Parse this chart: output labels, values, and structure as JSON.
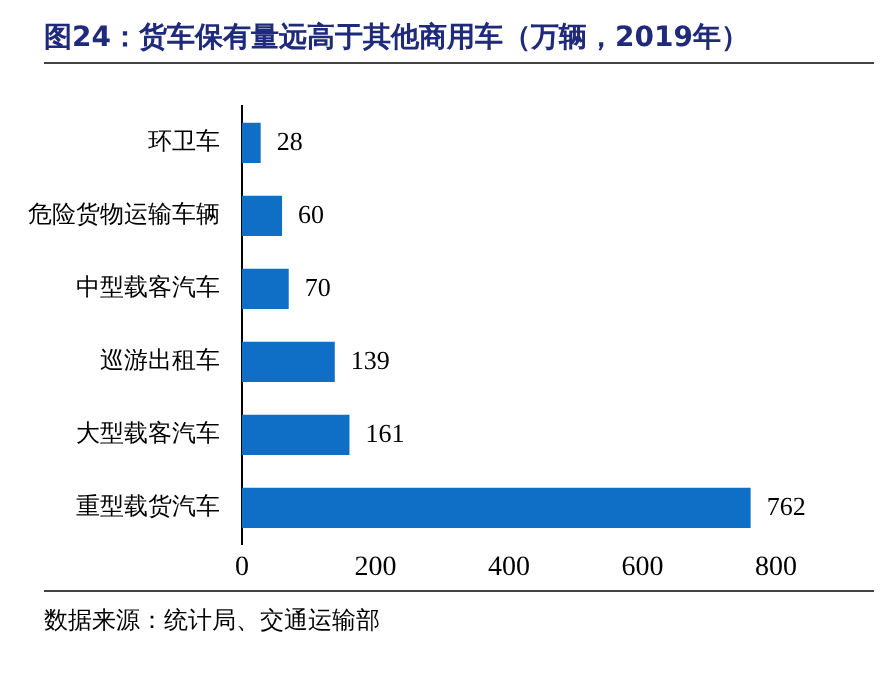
{
  "chart_data": {
    "type": "bar",
    "orientation": "horizontal",
    "title": "图24：货车保有量远高于其他商用车（万辆，2019年）",
    "categories": [
      "环卫车",
      "危险货物运输车辆",
      "中型载客汽车",
      "巡游出租车",
      "大型载客汽车",
      "重型载货汽车"
    ],
    "values": [
      28,
      60,
      70,
      139,
      161,
      762
    ],
    "color": "#0f6fc6",
    "xlim": [
      0,
      800
    ],
    "xticks": [
      0,
      200,
      400,
      600,
      800
    ],
    "grid": false,
    "legend": false,
    "data_labels": true,
    "annotations": [
      "数据来源：统计局、交通运输部"
    ]
  }
}
